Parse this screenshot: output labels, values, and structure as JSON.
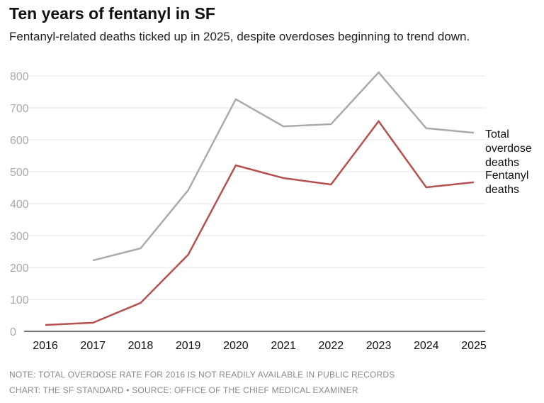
{
  "chart_data": {
    "type": "line",
    "title": "Ten years of fentanyl in SF",
    "subtitle": "Fentanyl-related deaths ticked up in 2025, despite overdoses beginning to trend down.",
    "x": [
      "2016",
      "2017",
      "2018",
      "2019",
      "2020",
      "2021",
      "2022",
      "2023",
      "2024",
      "2025"
    ],
    "ylim": [
      0,
      800
    ],
    "yticks": [
      "0",
      "100",
      "200",
      "300",
      "400",
      "500",
      "600",
      "700",
      "800"
    ],
    "grid": true,
    "legend": "direct labels at right",
    "series": [
      {
        "name": "Total overdose deaths",
        "label_lines": [
          "Total",
          "overdose",
          "deaths"
        ],
        "color": "#aaaaaa",
        "values": [
          null,
          222,
          260,
          442,
          727,
          642,
          649,
          811,
          636,
          622
        ]
      },
      {
        "name": "Fentanyl deaths",
        "label_lines": [
          "Fentanyl",
          "deaths"
        ],
        "color": "#b5504f",
        "values": [
          20,
          27,
          89,
          240,
          520,
          480,
          460,
          658,
          451,
          467
        ]
      }
    ]
  },
  "notes": {
    "note": "NOTE: TOTAL OVERDOSE RATE FOR 2016 IS NOT READILY AVAILABLE IN PUBLIC RECORDS",
    "credit": "CHART: THE SF STANDARD • SOURCE: OFFICE OF THE CHIEF MEDICAL EXAMINER"
  }
}
